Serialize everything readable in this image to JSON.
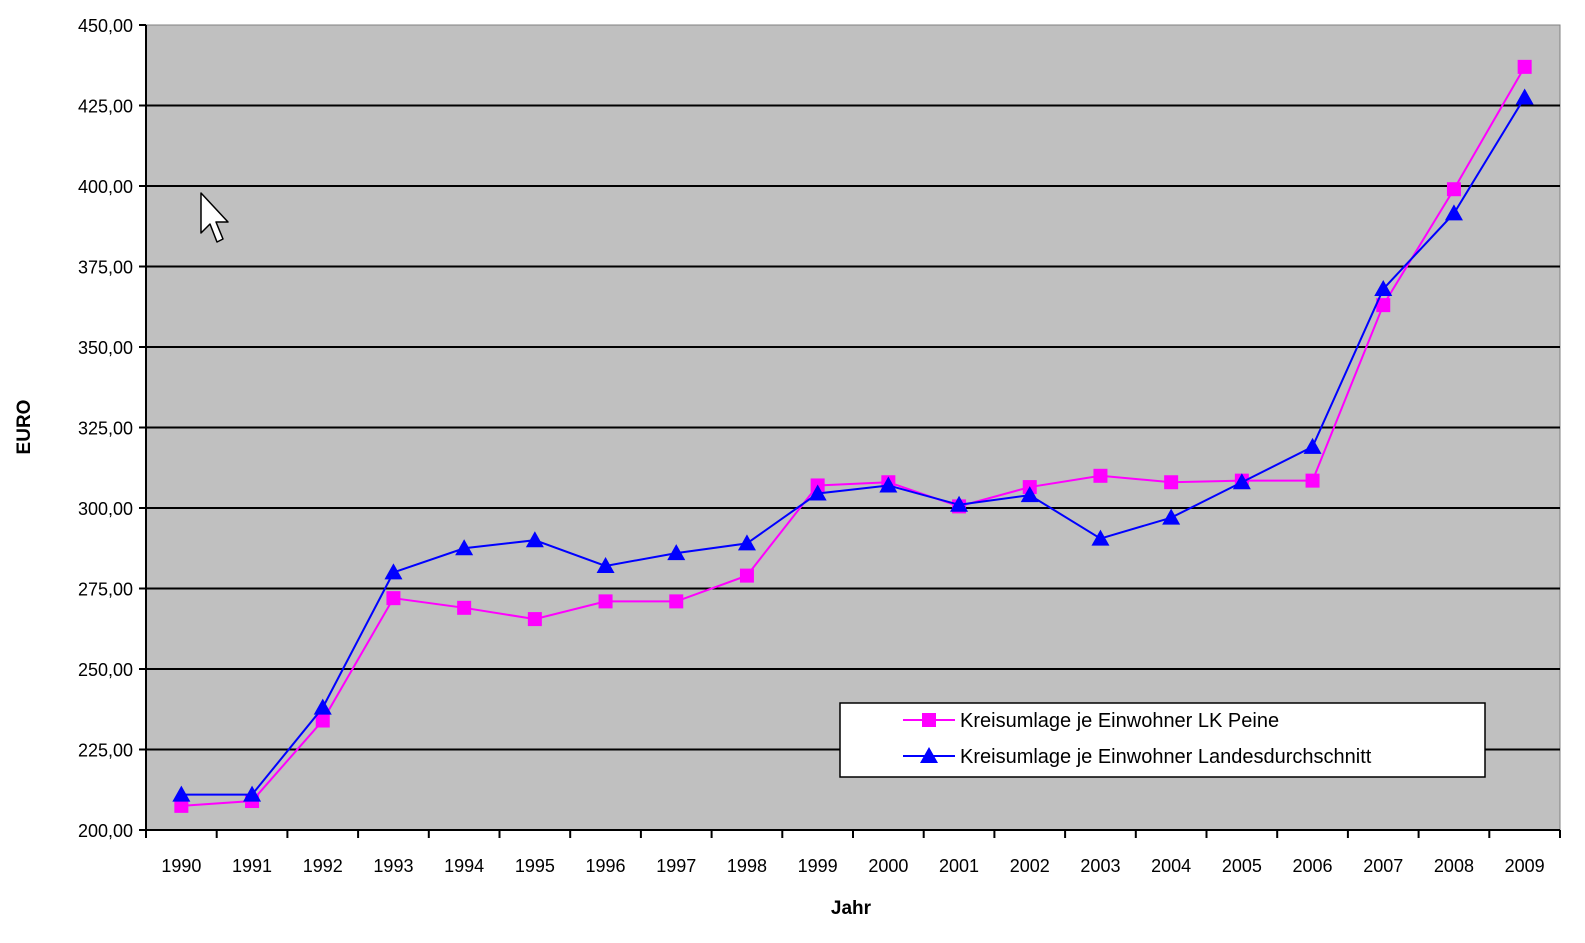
{
  "chart_data": {
    "type": "line",
    "title": "",
    "xlabel": "Jahr",
    "ylabel": "EURO",
    "categories": [
      "1990",
      "1991",
      "1992",
      "1993",
      "1994",
      "1995",
      "1996",
      "1997",
      "1998",
      "1999",
      "2000",
      "2001",
      "2002",
      "2003",
      "2004",
      "2005",
      "2006",
      "2007",
      "2008",
      "2009"
    ],
    "ylim": [
      200,
      450
    ],
    "ytick_values": [
      200,
      225,
      250,
      275,
      300,
      325,
      350,
      375,
      400,
      425,
      450
    ],
    "ytick_labels": [
      "200,00",
      "225,00",
      "250,00",
      "275,00",
      "300,00",
      "325,00",
      "350,00",
      "375,00",
      "400,00",
      "425,00",
      "450,00"
    ],
    "grid": true,
    "legend_position": "lower-right",
    "plot_background": "#c0c0c0",
    "series": [
      {
        "name": "Kreisumlage je Einwohner LK Peine",
        "color": "#ff00ff",
        "marker": "square",
        "values": [
          207.5,
          209,
          234,
          272,
          269,
          265.5,
          271,
          271,
          279,
          307,
          308,
          300.5,
          306.5,
          310,
          308,
          308.5,
          308.5,
          363,
          399,
          437
        ]
      },
      {
        "name": "Kreisumlage je Einwohner Landesdurchschnitt",
        "color": "#0000ff",
        "marker": "triangle",
        "values": [
          211,
          211,
          238,
          280,
          287.5,
          290,
          282,
          286,
          289,
          304.5,
          307,
          301,
          304,
          290.5,
          297,
          308,
          319,
          368,
          391.5,
          427.5
        ]
      }
    ]
  },
  "cursor_icon": "mouse-pointer-icon"
}
